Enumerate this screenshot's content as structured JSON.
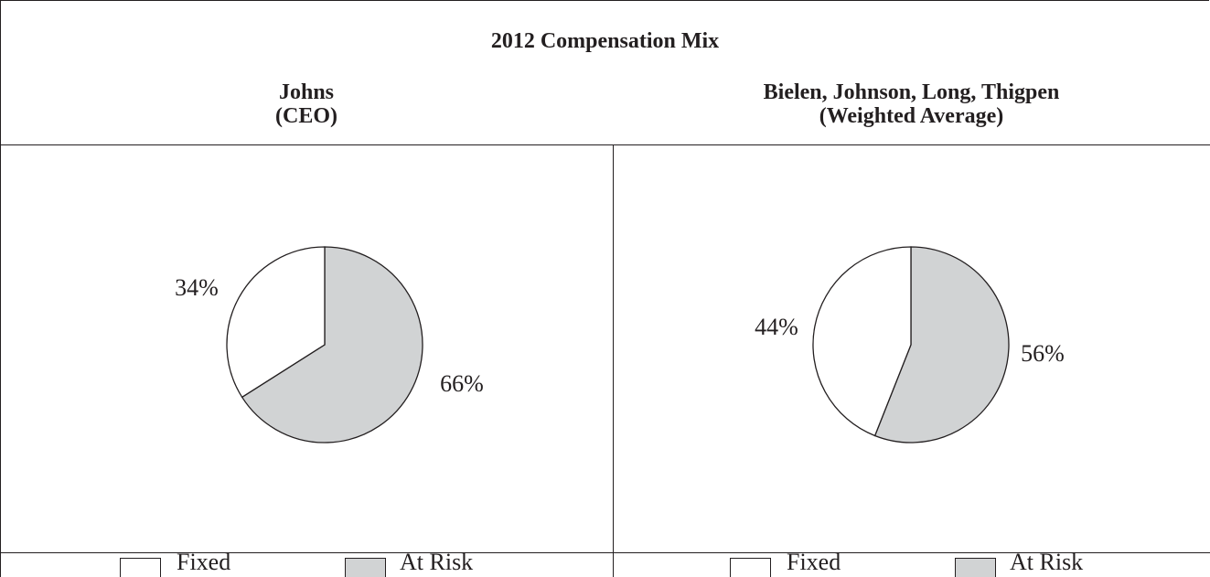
{
  "title": "2012 Compensation Mix",
  "colors": {
    "fixed": "#ffffff",
    "at_risk": "#d1d3d4",
    "line": "#231f20"
  },
  "legend": {
    "fixed": "Fixed",
    "at_risk": "At Risk"
  },
  "chart_data": [
    {
      "type": "pie",
      "title_line1": "Johns",
      "title_line2": "(CEO)",
      "slices": [
        {
          "label": "Fixed",
          "value": 34,
          "display": "34%"
        },
        {
          "label": "At Risk",
          "value": 66,
          "display": "66%"
        }
      ]
    },
    {
      "type": "pie",
      "title_line1": "Bielen, Johnson, Long, Thigpen",
      "title_line2": "(Weighted Average)",
      "slices": [
        {
          "label": "Fixed",
          "value": 44,
          "display": "44%"
        },
        {
          "label": "At Risk",
          "value": 56,
          "display": "56%"
        }
      ]
    }
  ]
}
